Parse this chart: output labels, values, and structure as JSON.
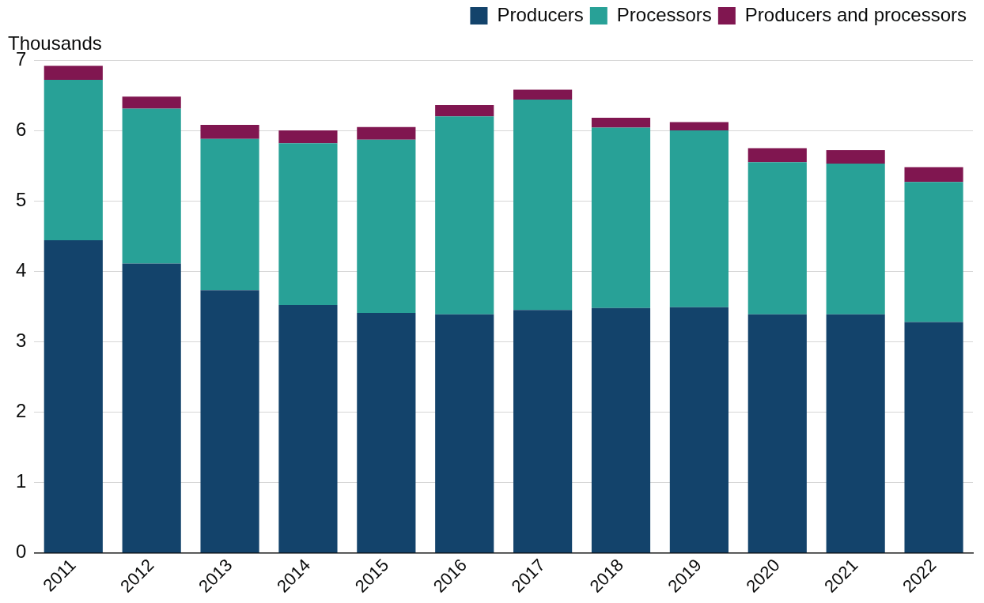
{
  "chart_data": {
    "type": "bar",
    "stacked": true,
    "ylabel": "Thousands",
    "categories": [
      "2011",
      "2012",
      "2013",
      "2014",
      "2015",
      "2016",
      "2017",
      "2018",
      "2019",
      "2020",
      "2021",
      "2022"
    ],
    "series": [
      {
        "name": "Producers",
        "color": "#13436b",
        "values": [
          4.44,
          4.11,
          3.73,
          3.52,
          3.41,
          3.39,
          3.45,
          3.48,
          3.49,
          3.39,
          3.39,
          3.28
        ]
      },
      {
        "name": "Processors",
        "color": "#28a197",
        "values": [
          2.28,
          2.2,
          2.15,
          2.3,
          2.46,
          2.81,
          2.99,
          2.56,
          2.51,
          2.16,
          2.14,
          1.99
        ]
      },
      {
        "name": "Producers and processors",
        "color": "#801650",
        "values": [
          0.2,
          0.17,
          0.2,
          0.18,
          0.18,
          0.16,
          0.14,
          0.14,
          0.12,
          0.2,
          0.19,
          0.21
        ]
      }
    ],
    "ylim": [
      0,
      7
    ],
    "yticks": [
      0,
      1,
      2,
      3,
      4,
      5,
      6,
      7
    ],
    "grid": "y",
    "legend": "top right"
  }
}
